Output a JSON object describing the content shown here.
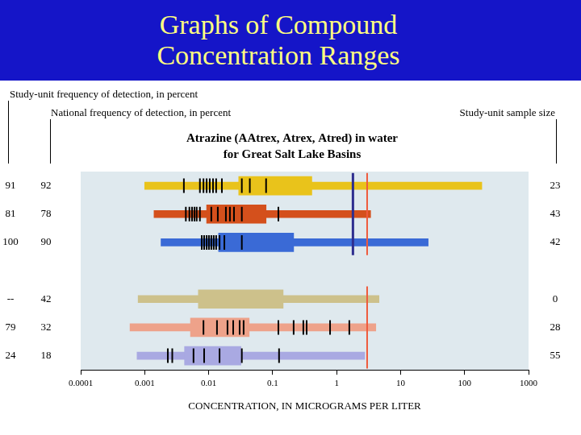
{
  "header": {
    "title": [
      "Graphs of Compound",
      "Concentration Ranges"
    ]
  },
  "chart_data": {
    "type": "range",
    "title": [
      "Atrazine (AAtrex, Atrex, Atred) in water",
      "for Great Salt Lake Basins"
    ],
    "xlabel": "CONCENTRATION, IN MICROGRAMS PER LITER",
    "log": "x",
    "grid": false,
    "xlim": [
      0.0001,
      1000
    ],
    "xticks": [
      0.0001,
      0.001,
      0.01,
      0.1,
      1,
      10,
      100,
      1000
    ],
    "column_titles": {
      "study_unit_frequency": "Study-unit frequency of detection, in percent",
      "national_frequency": "National frequency of detection, in percent",
      "sample_size": "Study-unit sample size"
    },
    "groups": [
      {
        "reference_lines": [
          {
            "value": 1.8,
            "color": "#2e2e8f"
          },
          {
            "value": 3,
            "color": "#ef5a3c"
          }
        ],
        "rows": [
          {
            "color": "#e9c31b",
            "study_unit_frequency": 91,
            "national_frequency": 92,
            "sample_size": 23,
            "min": 0.001,
            "max": 186,
            "q1": 0.0295,
            "q3": 0.41,
            "detections": [
              0.0041,
              0.0073,
              0.0083,
              0.0093,
              0.0104,
              0.0117,
              0.0131,
              0.0161,
              0.033,
              0.044,
              0.079
            ]
          },
          {
            "color": "#d4501c",
            "study_unit_frequency": 81,
            "national_frequency": 78,
            "sample_size": 43,
            "min": 0.0014,
            "max": 3.4,
            "q1": 0.0093,
            "q3": 0.079,
            "detections": [
              0.0044,
              0.005,
              0.0055,
              0.006,
              0.0065,
              0.0073,
              0.011,
              0.0139,
              0.0186,
              0.0215,
              0.0249,
              0.033,
              0.123
            ]
          },
          {
            "color": "#3a6ad6",
            "study_unit_frequency": 100,
            "national_frequency": 90,
            "sample_size": 42,
            "min": 0.0018,
            "max": 27,
            "q1": 0.0143,
            "q3": 0.213,
            "detections": [
              0.0078,
              0.0085,
              0.0093,
              0.0101,
              0.011,
              0.012,
              0.0131,
              0.0148,
              0.0176,
              0.033
            ]
          }
        ]
      },
      {
        "reference_lines": [
          {
            "value": 3,
            "color": "#ef5a3c"
          }
        ],
        "rows": [
          {
            "color": "#cdc18b",
            "study_unit_frequency": "--",
            "national_frequency": 42,
            "sample_size": 0,
            "min": 0.00079,
            "max": 4.6,
            "q1": 0.0069,
            "q3": 0.146,
            "detections": []
          },
          {
            "color": "#eea28a",
            "study_unit_frequency": 79,
            "national_frequency": 32,
            "sample_size": 28,
            "min": 0.00059,
            "max": 4.1,
            "q1": 0.0052,
            "q3": 0.043,
            "detections": [
              0.0083,
              0.0135,
              0.0197,
              0.0242,
              0.0305,
              0.0352,
              0.123,
              0.213,
              0.302,
              0.34,
              0.79,
              1.58
            ]
          },
          {
            "color": "#a9a9e2",
            "study_unit_frequency": 24,
            "national_frequency": 18,
            "sample_size": 55,
            "min": 0.00076,
            "max": 2.75,
            "q1": 0.0042,
            "q3": 0.032,
            "detections": [
              0.0023,
              0.0027,
              0.0058,
              0.0085,
              0.0148,
              0.033,
              0.126
            ]
          }
        ]
      }
    ]
  }
}
